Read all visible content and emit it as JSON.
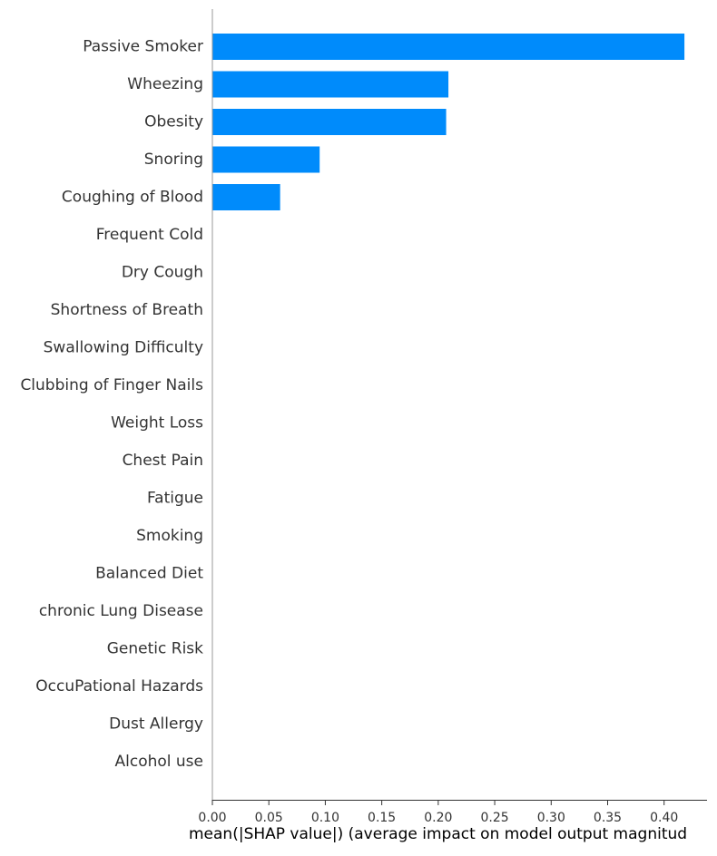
{
  "chart_data": {
    "type": "bar",
    "orientation": "horizontal",
    "title": "",
    "xlabel": "mean(|SHAP value|) (average impact on model output magnitud",
    "ylabel": "",
    "categories": [
      "Passive Smoker",
      "Wheezing",
      "Obesity",
      "Snoring",
      "Coughing of Blood",
      "Frequent Cold",
      "Dry Cough",
      "Shortness of Breath",
      "Swallowing Difficulty",
      "Clubbing of Finger Nails",
      "Weight Loss",
      "Chest Pain",
      "Fatigue",
      "Smoking",
      "Balanced Diet",
      "chronic Lung Disease",
      "Genetic Risk",
      "OccuPational Hazards",
      "Dust Allergy",
      "Alcohol use"
    ],
    "values": [
      0.418,
      0.209,
      0.207,
      0.095,
      0.06,
      0,
      0,
      0,
      0,
      0,
      0,
      0,
      0,
      0,
      0,
      0,
      0,
      0,
      0,
      0
    ],
    "xlim": [
      0,
      0.438
    ],
    "xticks": [
      0.0,
      0.05,
      0.1,
      0.15,
      0.2,
      0.25,
      0.3,
      0.35,
      0.4
    ],
    "xtick_labels": [
      "0.00",
      "0.05",
      "0.10",
      "0.15",
      "0.20",
      "0.25",
      "0.30",
      "0.35",
      "0.40"
    ],
    "grid": false,
    "legend": "none",
    "colors": {
      "bar": "#008bfb",
      "axis": "#333333",
      "label": "#333333"
    }
  }
}
